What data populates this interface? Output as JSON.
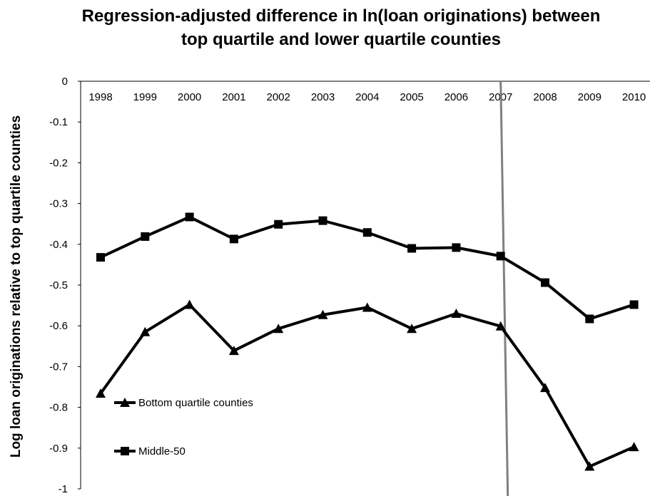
{
  "chart_data": {
    "type": "line",
    "title_lines": [
      "Regression-adjusted difference in ln(loan originations) between",
      "top quartile and lower quartile counties"
    ],
    "xlabel": "",
    "ylabel": "Log loan originations relative to top quartile counties",
    "categories": [
      "1998",
      "1999",
      "2000",
      "2001",
      "2002",
      "2003",
      "2004",
      "2005",
      "2006",
      "2007",
      "2008",
      "2009",
      "2010"
    ],
    "ylim": [
      -1,
      0
    ],
    "yticks": [
      0,
      -0.1,
      -0.2,
      -0.3,
      -0.4,
      -0.5,
      -0.6,
      -0.7,
      -0.8,
      -0.9,
      -1
    ],
    "ytick_labels": [
      "0",
      "-0.1",
      "-0.2",
      "-0.3",
      "-0.4",
      "-0.5",
      "-0.6",
      "-0.7",
      "-0.8",
      "-0.9",
      "-1"
    ],
    "vertical_marker_category": "2007",
    "grid": false,
    "legend_position": "bottom-left",
    "series": [
      {
        "name": "Bottom quartile counties",
        "marker": "triangle",
        "color": "#000000",
        "values": [
          -0.766,
          -0.615,
          -0.548,
          -0.661,
          -0.607,
          -0.573,
          -0.555,
          -0.607,
          -0.57,
          -0.601,
          -0.752,
          -0.945,
          -0.897
        ]
      },
      {
        "name": "Middle-50",
        "marker": "square",
        "color": "#000000",
        "values": [
          -0.432,
          -0.381,
          -0.333,
          -0.387,
          -0.351,
          -0.342,
          -0.371,
          -0.41,
          -0.408,
          -0.429,
          -0.494,
          -0.583,
          -0.548
        ]
      }
    ],
    "colors": {
      "lines": "#000000",
      "marker_line": "#808080"
    }
  }
}
